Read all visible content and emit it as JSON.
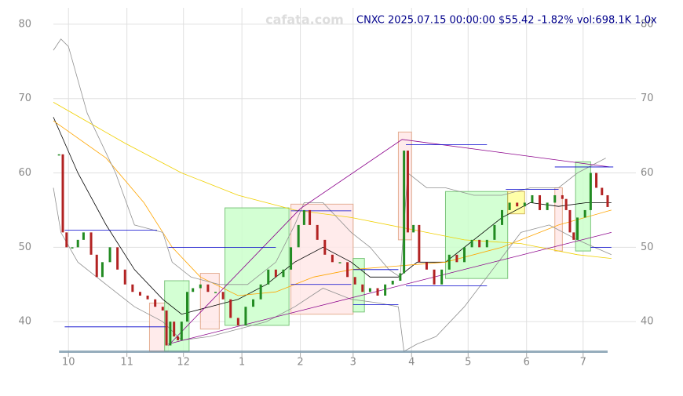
{
  "chart_data": {
    "type": "candlestick",
    "title": "CNXC 2025.07.15 00:00:00 $55.42 -1.82% vol:698.1K 1.0x",
    "watermark": "cafata.com",
    "xlim": [
      -8,
      301
    ],
    "ylim": [
      35.8,
      82.2
    ],
    "yticks": [
      40,
      50,
      60,
      70,
      80
    ],
    "xticks": [
      {
        "value": 0,
        "label": "10"
      },
      {
        "value": 31,
        "label": "11"
      },
      {
        "value": 61,
        "label": "12"
      },
      {
        "value": 92,
        "label": "1"
      },
      {
        "value": 123,
        "label": "2"
      },
      {
        "value": 151,
        "label": "3"
      },
      {
        "value": 182,
        "label": "4"
      },
      {
        "value": 212,
        "label": "5"
      },
      {
        "value": 243,
        "label": "6"
      },
      {
        "value": 273,
        "label": "7"
      }
    ],
    "grid": true,
    "up_color": "#228b22",
    "down_color": "#b22222",
    "candles": {
      "x": [
        -5,
        -3,
        -1,
        2,
        5,
        8,
        12,
        15,
        18,
        22,
        26,
        30,
        34,
        38,
        42,
        46,
        50,
        52,
        54,
        56,
        58,
        60,
        63,
        66,
        70,
        74,
        78,
        82,
        86,
        90,
        94,
        98,
        102,
        106,
        110,
        114,
        118,
        122,
        125,
        128,
        132,
        136,
        140,
        144,
        148,
        152,
        156,
        160,
        164,
        168,
        172,
        176,
        178,
        180,
        183,
        186,
        190,
        194,
        198,
        202,
        206,
        210,
        214,
        218,
        222,
        226,
        230,
        234,
        238,
        242,
        246,
        250,
        254,
        258,
        262,
        264,
        266,
        268,
        270,
        274,
        277,
        280,
        283,
        286
      ],
      "close": [
        62.5,
        52,
        50,
        50,
        51,
        52,
        49,
        46,
        48,
        50,
        47,
        45,
        44,
        43.5,
        43,
        42,
        41.5,
        36.8,
        40,
        38,
        37.5,
        40,
        44,
        44.5,
        45,
        44,
        44,
        43,
        40.5,
        39.5,
        42,
        43,
        45,
        47,
        46,
        47,
        50,
        53,
        55,
        53,
        51,
        49,
        48,
        48,
        46,
        45,
        44,
        44.5,
        43.5,
        45,
        45.5,
        46.5,
        63,
        52,
        53,
        48,
        47,
        45,
        47,
        49,
        48,
        50,
        51,
        50,
        51,
        53,
        55,
        56,
        55.5,
        56,
        57,
        55,
        56,
        57,
        56.5,
        55,
        52,
        51,
        54,
        55,
        60,
        58,
        57,
        55.42
      ]
    },
    "overlays": [
      {
        "color": "#000000",
        "x": [
          -8,
          5,
          20,
          35,
          50,
          60,
          75,
          90,
          105,
          120,
          135,
          150,
          160,
          175,
          185,
          200,
          215,
          230,
          245,
          260,
          275,
          288
        ],
        "values": [
          67.5,
          60,
          53,
          47,
          43,
          41,
          42,
          43,
          45,
          48,
          50,
          48,
          46,
          46,
          48,
          48,
          51,
          54,
          56,
          55.5,
          56,
          56
        ]
      },
      {
        "color": "#ffa500",
        "x": [
          -8,
          20,
          40,
          55,
          70,
          90,
          110,
          130,
          150,
          175,
          200,
          230,
          260,
          288
        ],
        "values": [
          67,
          62,
          56,
          50,
          46,
          43.5,
          44,
          46,
          47,
          47.5,
          48,
          50,
          53,
          55
        ]
      },
      {
        "color": "#f0d000",
        "x": [
          -8,
          30,
          60,
          90,
          120,
          150,
          180,
          210,
          240,
          270,
          288
        ],
        "values": [
          69.5,
          64,
          60,
          57,
          55,
          54,
          52.5,
          51,
          50.5,
          49,
          48.5
        ]
      },
      {
        "color": "#909090",
        "x": [
          -8,
          -4,
          0,
          10,
          25,
          35,
          50,
          55,
          65,
          80,
          95,
          110,
          120,
          125,
          135,
          150,
          160,
          170,
          176,
          180,
          190,
          200,
          215,
          230,
          245,
          260,
          270,
          285
        ],
        "values": [
          76.5,
          78,
          77,
          68,
          60,
          53,
          52,
          48,
          46,
          45,
          45,
          48,
          53,
          56,
          56,
          52,
          50,
          47,
          46,
          60,
          58,
          58,
          57,
          57,
          58,
          58,
          60,
          62
        ]
      },
      {
        "color": "#909090",
        "x": [
          -8,
          -4,
          5,
          20,
          35,
          50,
          60,
          75,
          90,
          105,
          120,
          135,
          150,
          165,
          175,
          178,
          185,
          195,
          210,
          225,
          240,
          255,
          270,
          288
        ],
        "values": [
          58,
          52,
          48,
          45,
          42,
          40,
          37.5,
          38,
          39,
          40,
          42,
          44.5,
          43,
          42.5,
          42,
          36,
          37,
          38,
          42,
          47,
          52,
          53,
          51,
          49
        ]
      }
    ],
    "zones": [
      {
        "kind": "down",
        "x": [
          43,
          53
        ],
        "y": [
          36,
          42.5
        ]
      },
      {
        "kind": "up",
        "x": [
          51,
          64
        ],
        "y": [
          36,
          45.5
        ]
      },
      {
        "kind": "down",
        "x": [
          70,
          80
        ],
        "y": [
          39,
          46.5
        ]
      },
      {
        "kind": "up",
        "x": [
          83,
          117
        ],
        "y": [
          39.5,
          55.3
        ]
      },
      {
        "kind": "down",
        "x": [
          118,
          151
        ],
        "y": [
          41,
          55.8
        ]
      },
      {
        "kind": "up",
        "x": [
          151,
          157
        ],
        "y": [
          41.3,
          48.5
        ]
      },
      {
        "kind": "down",
        "x": [
          175,
          182
        ],
        "y": [
          51,
          65.5
        ]
      },
      {
        "kind": "up",
        "x": [
          200,
          233
        ],
        "y": [
          45.8,
          57.5
        ]
      },
      {
        "kind": "flat",
        "x": [
          233,
          242
        ],
        "y": [
          54.5,
          57.5
        ]
      },
      {
        "kind": "down",
        "x": [
          258,
          262
        ],
        "y": [
          49.5,
          58
        ]
      },
      {
        "kind": "up",
        "x": [
          269,
          277
        ],
        "y": [
          49.5,
          61.5
        ]
      }
    ],
    "zone_colors": {
      "up": [
        "#ccffcc",
        "#66bb66"
      ],
      "down": [
        "#ffe8e8",
        "#e0a080"
      ],
      "flat": [
        "#ffff99",
        "#ccaa44"
      ]
    },
    "levels": [
      {
        "x": [
          -2,
          47
        ],
        "y": 52.3
      },
      {
        "x": [
          -2,
          52
        ],
        "y": 39.3
      },
      {
        "x": [
          53,
          110
        ],
        "y": 50
      },
      {
        "x": [
          118,
          150
        ],
        "y": 54.9
      },
      {
        "x": [
          118,
          150
        ],
        "y": 45
      },
      {
        "x": [
          151,
          175
        ],
        "y": 47
      },
      {
        "x": [
          151,
          175
        ],
        "y": 42.3
      },
      {
        "x": [
          179,
          222
        ],
        "y": 63.8
      },
      {
        "x": [
          179,
          222
        ],
        "y": 44.8
      },
      {
        "x": [
          232,
          260
        ],
        "y": 57.8
      },
      {
        "x": [
          258,
          289
        ],
        "y": 60.8
      },
      {
        "x": [
          277,
          288
        ],
        "y": 50
      }
    ],
    "level_color": "#0000cc",
    "trend_lines": [
      {
        "x": [
          53,
          123,
          177,
          287
        ],
        "y": [
          36.8,
          55.2,
          64.5,
          60.8
        ]
      },
      {
        "x": [
          53,
          288
        ],
        "y": [
          37,
          52
        ]
      }
    ],
    "trend_color": "#8b008b"
  }
}
